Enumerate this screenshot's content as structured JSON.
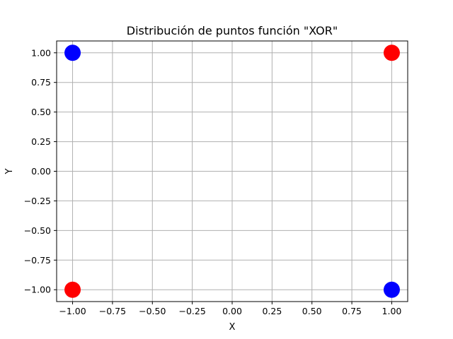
{
  "chart_data": {
    "type": "scatter",
    "title": "Distribución de puntos función \"XOR\"",
    "xlabel": "X",
    "ylabel": "Y",
    "xlim": [
      -1.1,
      1.1
    ],
    "ylim": [
      -1.1,
      1.1
    ],
    "grid": true,
    "xticks": [
      -1.0,
      -0.75,
      -0.5,
      -0.25,
      0.0,
      0.25,
      0.5,
      0.75,
      1.0
    ],
    "yticks": [
      -1.0,
      -0.75,
      -0.5,
      -0.25,
      0.0,
      0.25,
      0.5,
      0.75,
      1.0
    ],
    "xtick_labels": [
      "−1.00",
      "−0.75",
      "−0.50",
      "−0.25",
      "0.00",
      "0.25",
      "0.50",
      "0.75",
      "1.00"
    ],
    "ytick_labels": [
      "−1.00",
      "−0.75",
      "−0.50",
      "−0.25",
      "0.00",
      "0.25",
      "0.50",
      "0.75",
      "1.00"
    ],
    "points": [
      {
        "x": -1,
        "y": 1,
        "color": "#0000ff"
      },
      {
        "x": 1,
        "y": 1,
        "color": "#ff0000"
      },
      {
        "x": -1,
        "y": -1,
        "color": "#ff0000"
      },
      {
        "x": 1,
        "y": -1,
        "color": "#0000ff"
      }
    ],
    "colors": {
      "grid": "#b0b0b0",
      "axes": "#000000"
    }
  }
}
